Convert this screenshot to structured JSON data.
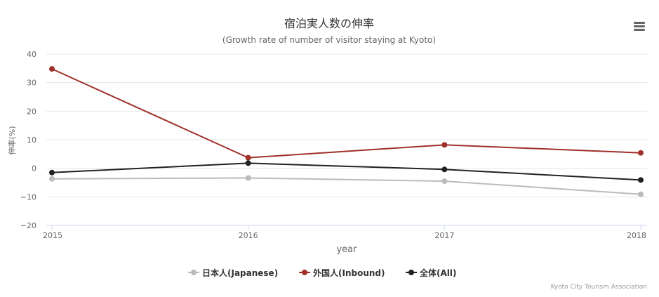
{
  "chart_data": {
    "type": "line",
    "title": "宿泊実人数の伸率",
    "subtitle": "(Growth rate of number of visitor staying at Kyoto)",
    "xlabel": "year",
    "ylabel": "伸率(%)",
    "categories": [
      "2015",
      "2016",
      "2017",
      "2018"
    ],
    "ylim": [
      -20,
      40
    ],
    "yticks": [
      -20,
      -10,
      0,
      10,
      20,
      30,
      40
    ],
    "grid": true,
    "legend_position": "bottom-center",
    "series": [
      {
        "name": "日本人(Japanese)",
        "color": "#bbbbbb",
        "values": [
          -3.7,
          -3.4,
          -4.5,
          -9.1
        ]
      },
      {
        "name": "外国人(Inbound)",
        "color": "#a0302a",
        "values": [
          34.8,
          3.7,
          8.2,
          5.4
        ]
      },
      {
        "name": "全体(All)",
        "color": "#222222",
        "values": [
          -1.5,
          1.8,
          -0.4,
          -4.1
        ]
      }
    ],
    "credit": "Kyoto City Tourism Association"
  },
  "icons": {
    "menu": "hamburger-menu-icon"
  }
}
